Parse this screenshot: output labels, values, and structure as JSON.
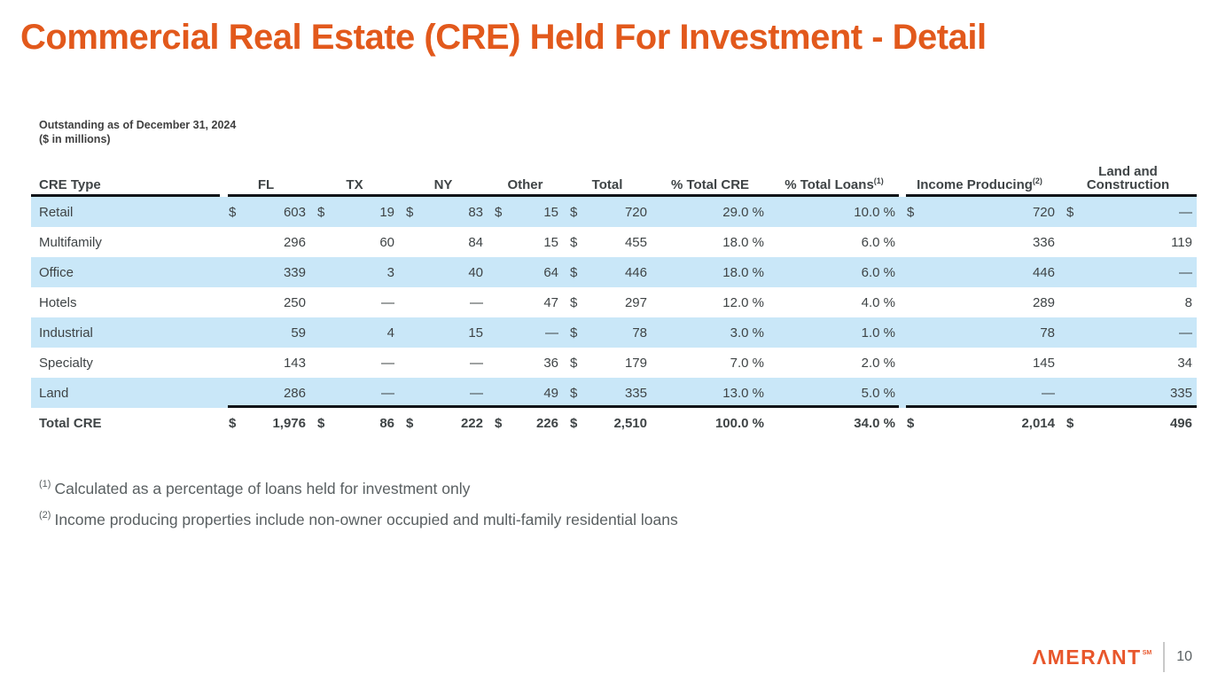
{
  "slide": {
    "title": "Commercial Real Estate (CRE) Held For Investment - Detail",
    "subtitle": {
      "line1": "Outstanding as of December 31, 2024",
      "line2": "($ in millions)"
    },
    "footnotes": [
      {
        "marker": "(1)",
        "text": "Calculated as a percentage of loans held for investment only"
      },
      {
        "marker": "(2)",
        "text": "Income producing properties include non-owner occupied and multi-family residential loans"
      }
    ],
    "footer": {
      "logo_text": "ΛMERΛNT",
      "logo_mark": "SM",
      "page_number": "10"
    },
    "colors": {
      "accent_orange": "#E2591C",
      "logo_orange": "#E8562B",
      "stripe_blue": "#C9E7F8",
      "text_dark": "#3F4446",
      "text_gray": "#595F61"
    }
  },
  "table": {
    "header": {
      "cre_type": "CRE Type",
      "fl": "FL",
      "tx": "TX",
      "ny": "NY",
      "other": "Other",
      "total": "Total",
      "pct_total_cre": "% Total CRE",
      "pct_total_loans": "% Total Loans",
      "pct_total_loans_sup": "(1)",
      "income_producing": "Income Producing",
      "income_producing_sup": "(2)",
      "land_line1": "Land and",
      "land_line2": "Construction"
    },
    "rows": [
      {
        "label": "Retail",
        "cells": [
          {
            "c": "$",
            "v": "603"
          },
          {
            "c": "$",
            "v": "19"
          },
          {
            "c": "$",
            "v": "83"
          },
          {
            "c": "$",
            "v": "15"
          },
          {
            "c": "$",
            "v": "720"
          },
          {
            "c": "",
            "v": "29.0 %"
          },
          {
            "c": "",
            "v": "10.0 %"
          },
          {
            "c": "$",
            "v": "720"
          },
          {
            "c": "$",
            "v": "—"
          }
        ]
      },
      {
        "label": "Multifamily",
        "cells": [
          {
            "c": "",
            "v": "296"
          },
          {
            "c": "",
            "v": "60"
          },
          {
            "c": "",
            "v": "84"
          },
          {
            "c": "",
            "v": "15"
          },
          {
            "c": "$",
            "v": "455"
          },
          {
            "c": "",
            "v": "18.0 %"
          },
          {
            "c": "",
            "v": "6.0 %"
          },
          {
            "c": "",
            "v": "336"
          },
          {
            "c": "",
            "v": "119"
          }
        ]
      },
      {
        "label": "Office",
        "cells": [
          {
            "c": "",
            "v": "339"
          },
          {
            "c": "",
            "v": "3"
          },
          {
            "c": "",
            "v": "40"
          },
          {
            "c": "",
            "v": "64"
          },
          {
            "c": "$",
            "v": "446"
          },
          {
            "c": "",
            "v": "18.0 %"
          },
          {
            "c": "",
            "v": "6.0 %"
          },
          {
            "c": "",
            "v": "446"
          },
          {
            "c": "",
            "v": "—"
          }
        ]
      },
      {
        "label": "Hotels",
        "cells": [
          {
            "c": "",
            "v": "250"
          },
          {
            "c": "",
            "v": "—"
          },
          {
            "c": "",
            "v": "—"
          },
          {
            "c": "",
            "v": "47"
          },
          {
            "c": "$",
            "v": "297"
          },
          {
            "c": "",
            "v": "12.0 %"
          },
          {
            "c": "",
            "v": "4.0 %"
          },
          {
            "c": "",
            "v": "289"
          },
          {
            "c": "",
            "v": "8"
          }
        ]
      },
      {
        "label": "Industrial",
        "cells": [
          {
            "c": "",
            "v": "59"
          },
          {
            "c": "",
            "v": "4"
          },
          {
            "c": "",
            "v": "15"
          },
          {
            "c": "",
            "v": "—"
          },
          {
            "c": "$",
            "v": "78"
          },
          {
            "c": "",
            "v": "3.0 %"
          },
          {
            "c": "",
            "v": "1.0 %"
          },
          {
            "c": "",
            "v": "78"
          },
          {
            "c": "",
            "v": "—"
          }
        ]
      },
      {
        "label": "Specialty",
        "cells": [
          {
            "c": "",
            "v": "143"
          },
          {
            "c": "",
            "v": "—"
          },
          {
            "c": "",
            "v": "—"
          },
          {
            "c": "",
            "v": "36"
          },
          {
            "c": "$",
            "v": "179"
          },
          {
            "c": "",
            "v": "7.0 %"
          },
          {
            "c": "",
            "v": "2.0 %"
          },
          {
            "c": "",
            "v": "145"
          },
          {
            "c": "",
            "v": "34"
          }
        ]
      },
      {
        "label": "Land",
        "cells": [
          {
            "c": "",
            "v": "286"
          },
          {
            "c": "",
            "v": "—"
          },
          {
            "c": "",
            "v": "—"
          },
          {
            "c": "",
            "v": "49"
          },
          {
            "c": "$",
            "v": "335"
          },
          {
            "c": "",
            "v": "13.0 %"
          },
          {
            "c": "",
            "v": "5.0 %"
          },
          {
            "c": "",
            "v": "—"
          },
          {
            "c": "",
            "v": "335"
          }
        ]
      },
      {
        "label": "Total CRE",
        "cells": [
          {
            "c": "$",
            "v": "1,976"
          },
          {
            "c": "$",
            "v": "86"
          },
          {
            "c": "$",
            "v": "222"
          },
          {
            "c": "$",
            "v": "226"
          },
          {
            "c": "$",
            "v": "2,510"
          },
          {
            "c": "",
            "v": "100.0 %"
          },
          {
            "c": "",
            "v": "34.0 %"
          },
          {
            "c": "$",
            "v": "2,014"
          },
          {
            "c": "$",
            "v": "496"
          }
        ]
      }
    ]
  }
}
